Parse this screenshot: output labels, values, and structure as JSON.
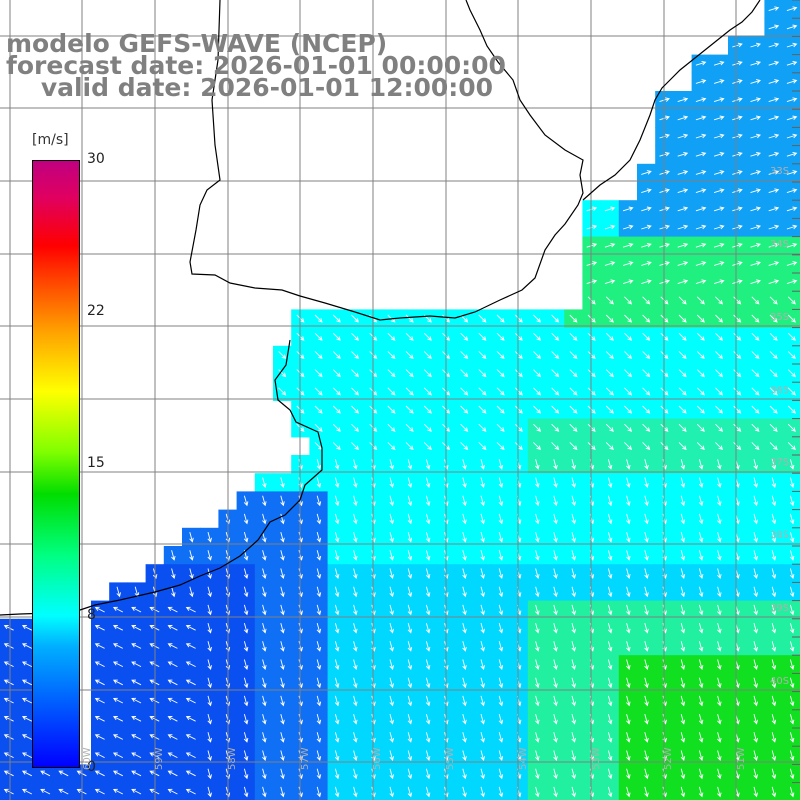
{
  "title": {
    "line1": "modelo GEFS-WAVE (NCEP)",
    "line2": "forecast date: 2026-01-01 00:00:00",
    "line3": "    valid date: 2026-01-01 12:00:00"
  },
  "colorbar": {
    "unit": "[m/s]",
    "ticks": [
      {
        "label": "30",
        "value": 30
      },
      {
        "label": "22",
        "value": 22
      },
      {
        "label": "15",
        "value": 15
      },
      {
        "label": "8",
        "value": 8
      },
      {
        "label": "0",
        "value": 0
      }
    ],
    "range": [
      0,
      30
    ],
    "colors": [
      "#0000ff",
      "#00b0ff",
      "#00ffff",
      "#00ff80",
      "#00dd00",
      "#80ff00",
      "#ffff00",
      "#ffa000",
      "#ff0000",
      "#c00080"
    ]
  },
  "map": {
    "lon_labels": [
      "60W",
      "59W",
      "58W",
      "57W",
      "56W",
      "55W",
      "54W",
      "53W",
      "52W",
      "51W"
    ],
    "lat_labels": [
      "33S",
      "34S",
      "35S",
      "36S",
      "37S",
      "38S",
      "39S",
      "40S"
    ],
    "colors": {
      "land": "#ffffff",
      "coast": "#000000",
      "grid": "#808080",
      "arrow": "#ffffff"
    }
  }
}
